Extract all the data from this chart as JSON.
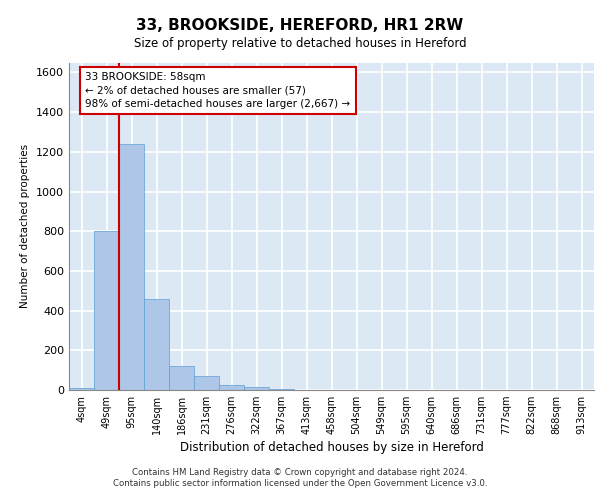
{
  "title": "33, BROOKSIDE, HEREFORD, HR1 2RW",
  "subtitle": "Size of property relative to detached houses in Hereford",
  "xlabel": "Distribution of detached houses by size in Hereford",
  "ylabel": "Number of detached properties",
  "categories": [
    "4sqm",
    "49sqm",
    "95sqm",
    "140sqm",
    "186sqm",
    "231sqm",
    "276sqm",
    "322sqm",
    "367sqm",
    "413sqm",
    "458sqm",
    "504sqm",
    "549sqm",
    "595sqm",
    "640sqm",
    "686sqm",
    "731sqm",
    "777sqm",
    "822sqm",
    "868sqm",
    "913sqm"
  ],
  "bar_values": [
    10,
    800,
    1240,
    460,
    120,
    70,
    25,
    15,
    5,
    2,
    0,
    0,
    0,
    0,
    0,
    0,
    0,
    0,
    0,
    0,
    0
  ],
  "bar_color": "#aec6e8",
  "bar_edge_color": "#5a9fd4",
  "background_color": "#dce9f5",
  "grid_color": "#ffffff",
  "annotation_text": "33 BROOKSIDE: 58sqm\n← 2% of detached houses are smaller (57)\n98% of semi-detached houses are larger (2,667) →",
  "vline_color": "#cc0000",
  "annotation_box_color": "#cc0000",
  "ylim": [
    0,
    1650
  ],
  "yticks": [
    0,
    200,
    400,
    600,
    800,
    1000,
    1200,
    1400,
    1600
  ],
  "footer_line1": "Contains HM Land Registry data © Crown copyright and database right 2024.",
  "footer_line2": "Contains public sector information licensed under the Open Government Licence v3.0."
}
